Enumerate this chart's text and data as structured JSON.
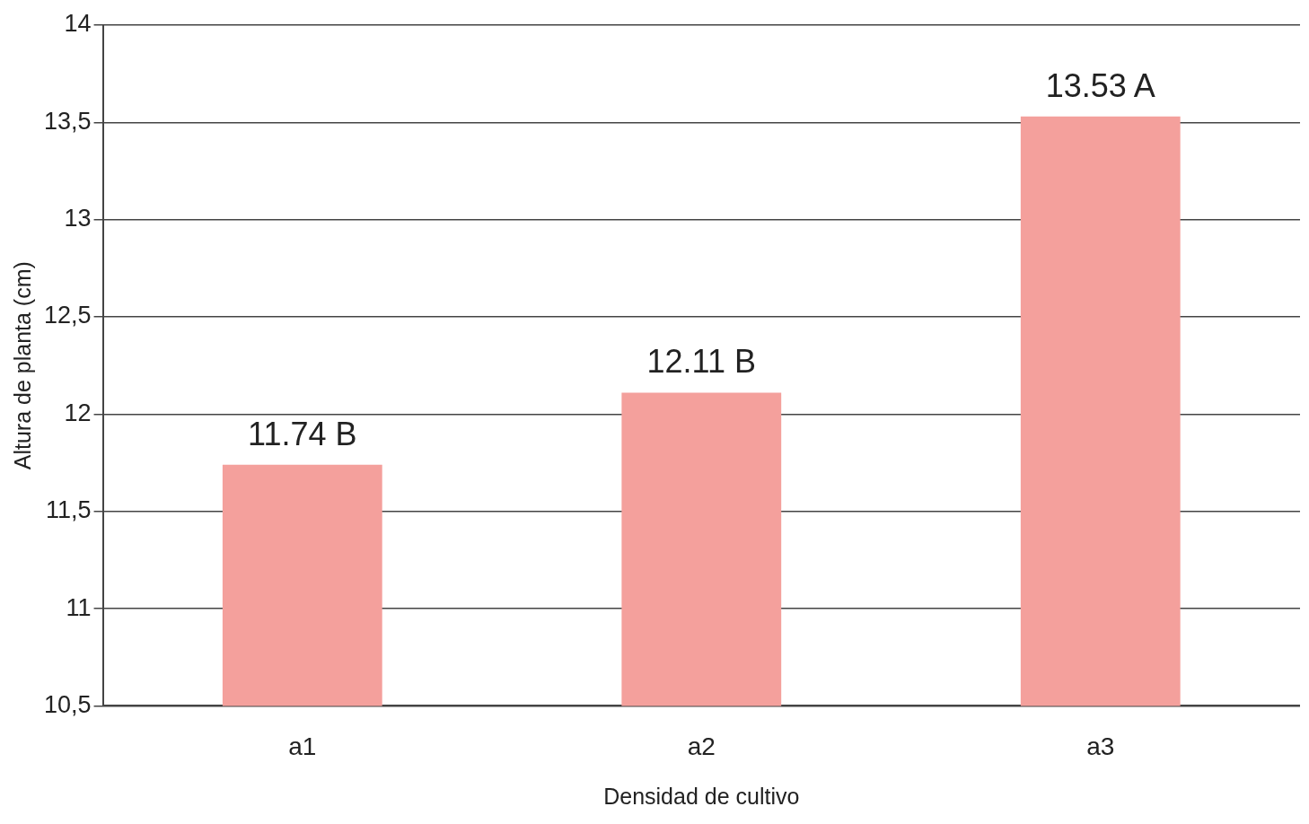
{
  "chart_data": {
    "type": "bar",
    "xlabel": "Densidad de cultivo",
    "ylabel": "Altura de planta (cm)",
    "categories": [
      "a1",
      "a2",
      "a3"
    ],
    "values": [
      11.74,
      12.11,
      13.53
    ],
    "value_labels": [
      "11.74 B",
      "12.11 B",
      "13.53 A"
    ],
    "color": "#f4a09c",
    "ylim": [
      10.5,
      14
    ],
    "yticks": [
      {
        "value": 10.5,
        "label": "10,5"
      },
      11,
      {
        "value": 11.5,
        "label": "11,5"
      },
      12,
      {
        "value": 12.5,
        "label": "12,5"
      },
      13,
      {
        "value": 13.5,
        "label": "13,5"
      },
      14
    ],
    "grid": "y",
    "legend": false
  }
}
